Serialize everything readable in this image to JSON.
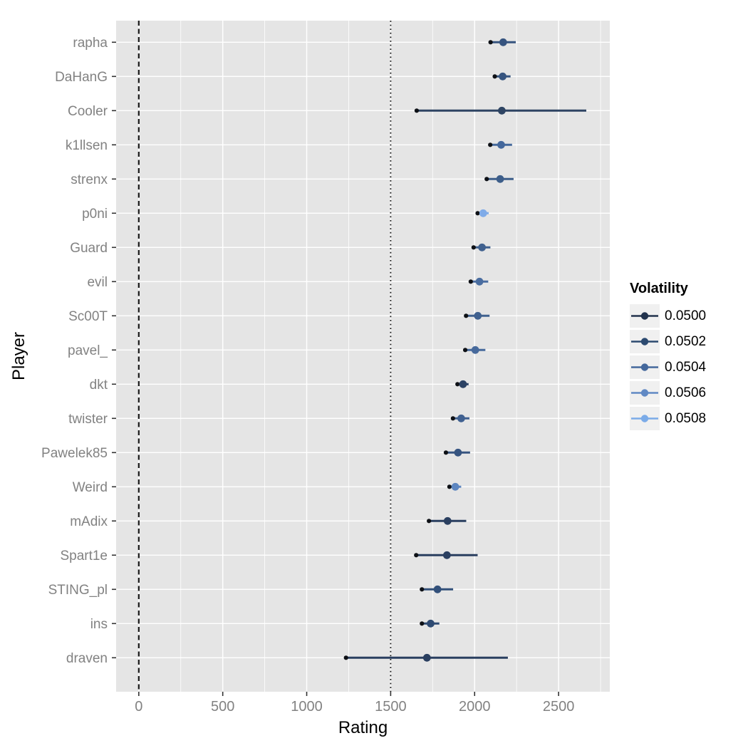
{
  "chart_data": {
    "type": "scatter",
    "subtype": "pointrange-horizontal",
    "title": "",
    "xlabel": "Rating",
    "ylabel": "Player",
    "xlim": [
      -135,
      2805
    ],
    "x_ticks": [
      0,
      500,
      1000,
      1500,
      2000,
      2500
    ],
    "x_minor_ticks": [
      250,
      750,
      1250,
      1750,
      2250,
      2750
    ],
    "grid": "on",
    "reference_lines": [
      {
        "x": 0,
        "style": "dashed"
      },
      {
        "x": 1500,
        "style": "dotted"
      }
    ],
    "legend": {
      "title": "Volatility",
      "position": "right",
      "entries": [
        {
          "label": "0.0500",
          "color": "#22334d"
        },
        {
          "label": "0.0502",
          "color": "#2c4a70"
        },
        {
          "label": "0.0504",
          "color": "#44689c"
        },
        {
          "label": "0.0506",
          "color": "#6189c4"
        },
        {
          "label": "0.0508",
          "color": "#7babe8"
        }
      ]
    },
    "players": [
      {
        "name": "rapha",
        "rating": 2170,
        "lo": 2095,
        "hi": 2245,
        "volatility": 0.0503,
        "color": "#36547f"
      },
      {
        "name": "DaHanG",
        "rating": 2167,
        "lo": 2120,
        "hi": 2214,
        "volatility": 0.0503,
        "color": "#36547f"
      },
      {
        "name": "Cooler",
        "rating": 2162,
        "lo": 1655,
        "hi": 2665,
        "volatility": 0.0501,
        "color": "#2e4463"
      },
      {
        "name": "k1llsen",
        "rating": 2158,
        "lo": 2093,
        "hi": 2223,
        "volatility": 0.0504,
        "color": "#44689c"
      },
      {
        "name": "strenx",
        "rating": 2152,
        "lo": 2072,
        "hi": 2232,
        "volatility": 0.0503,
        "color": "#3d5e8a"
      },
      {
        "name": "p0ni",
        "rating": 2051,
        "lo": 2018,
        "hi": 2084,
        "volatility": 0.0508,
        "color": "#7fabe8"
      },
      {
        "name": "Guard",
        "rating": 2044,
        "lo": 1994,
        "hi": 2094,
        "volatility": 0.0503,
        "color": "#40618f"
      },
      {
        "name": "evil",
        "rating": 2029,
        "lo": 1977,
        "hi": 2081,
        "volatility": 0.0504,
        "color": "#4a6da0"
      },
      {
        "name": "Sc00T",
        "rating": 2019,
        "lo": 1949,
        "hi": 2089,
        "volatility": 0.0503,
        "color": "#40618f"
      },
      {
        "name": "pavel_",
        "rating": 2004,
        "lo": 1944,
        "hi": 2064,
        "volatility": 0.0504,
        "color": "#476a9c"
      },
      {
        "name": "dkt",
        "rating": 1931,
        "lo": 1898,
        "hi": 1964,
        "volatility": 0.0501,
        "color": "#2b4163"
      },
      {
        "name": "twister",
        "rating": 1920,
        "lo": 1871,
        "hi": 1969,
        "volatility": 0.0503,
        "color": "#3f6090"
      },
      {
        "name": "Pawelek85",
        "rating": 1901,
        "lo": 1829,
        "hi": 1973,
        "volatility": 0.0502,
        "color": "#365480"
      },
      {
        "name": "Weird",
        "rating": 1885,
        "lo": 1850,
        "hi": 1920,
        "volatility": 0.0506,
        "color": "#5d86c0"
      },
      {
        "name": "mAdix",
        "rating": 1839,
        "lo": 1728,
        "hi": 1950,
        "volatility": 0.0501,
        "color": "#2a3f60"
      },
      {
        "name": "Spart1e",
        "rating": 1835,
        "lo": 1652,
        "hi": 2018,
        "volatility": 0.0501,
        "color": "#2a3f60"
      },
      {
        "name": "STING_pl",
        "rating": 1779,
        "lo": 1686,
        "hi": 1872,
        "volatility": 0.0502,
        "color": "#32507a"
      },
      {
        "name": "ins",
        "rating": 1738,
        "lo": 1686,
        "hi": 1790,
        "volatility": 0.0502,
        "color": "#2e4a72"
      },
      {
        "name": "draven",
        "rating": 1716,
        "lo": 1234,
        "hi": 2198,
        "volatility": 0.0501,
        "color": "#2a3f60"
      }
    ],
    "colors": {
      "panel_bg": "#e5e5e5",
      "grid_major": "#ffffff",
      "grid_minor": "#ffffff",
      "tick_mark": "#333333",
      "tick_label": "#828282",
      "axis_title": "#000000",
      "lower_bound_dot": "#0e1116",
      "reference_line": "#1a1a1a",
      "legend_key_bg": "#f0f0f0"
    }
  }
}
